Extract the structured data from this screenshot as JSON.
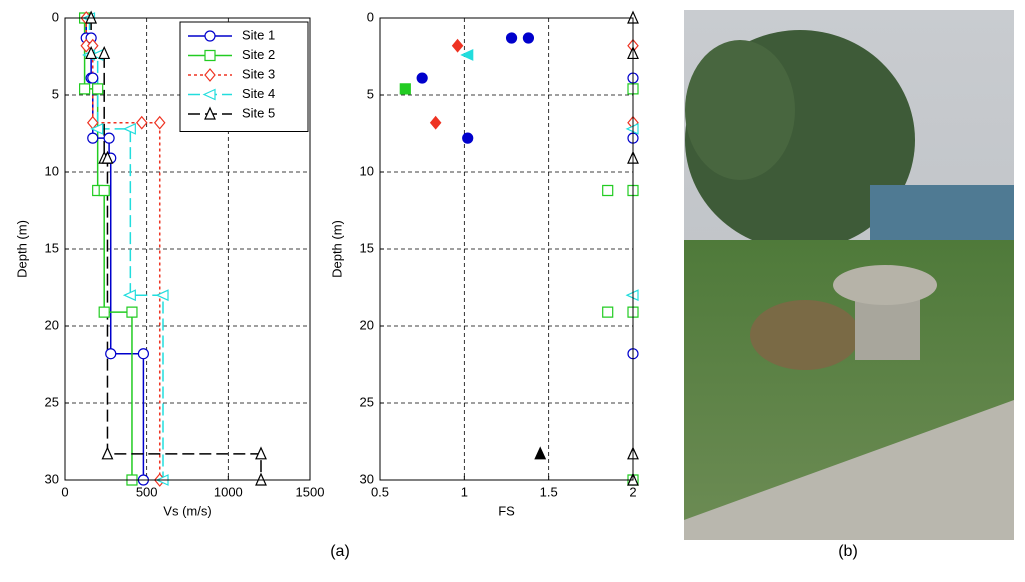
{
  "chart_data": [
    {
      "type": "line",
      "xlabel": "Vs (m/s)",
      "ylabel": "Depth (m)",
      "xlim": [
        0,
        1500
      ],
      "xticks": [
        0,
        500,
        1000,
        1500
      ],
      "ylim": [
        0,
        30
      ],
      "yticks": [
        0,
        5,
        10,
        15,
        20,
        25,
        30
      ],
      "yinvert": true,
      "grid": true,
      "legend": "upper right",
      "series": [
        {
          "name": "Site 1",
          "color": "#0000cc",
          "marker": "circle",
          "dash": "solid",
          "x": [
            130,
            130,
            160,
            160,
            170,
            170,
            270,
            270,
            280,
            280,
            480,
            480
          ],
          "values": [
            0,
            1.3,
            1.3,
            3.9,
            3.9,
            7.8,
            7.8,
            9.1,
            9.1,
            21.8,
            21.8,
            30
          ]
        },
        {
          "name": "Site 2",
          "color": "#22cc22",
          "marker": "square",
          "dash": "solid",
          "x": [
            120,
            120,
            200,
            200,
            240,
            240,
            410,
            410
          ],
          "values": [
            0,
            4.6,
            4.6,
            11.2,
            11.2,
            19.1,
            19.1,
            30
          ]
        },
        {
          "name": "Site 3",
          "color": "#ee3322",
          "marker": "diamond",
          "dash": "dotted",
          "x": [
            130,
            130,
            170,
            170,
            470,
            580,
            580
          ],
          "values": [
            0,
            1.8,
            1.8,
            6.8,
            6.8,
            6.8,
            30
          ]
        },
        {
          "name": "Site 4",
          "color": "#22dddd",
          "marker": "triangle-left",
          "dash": "dashed",
          "x": [
            150,
            150,
            200,
            200,
            400,
            400,
            600,
            600
          ],
          "values": [
            0,
            2.4,
            2.4,
            7.2,
            7.2,
            18,
            18,
            30
          ]
        },
        {
          "name": "Site 5",
          "color": "#000000",
          "marker": "triangle-up",
          "dash": "dashed",
          "x": [
            160,
            160,
            240,
            240,
            260,
            260,
            1200,
            1200
          ],
          "values": [
            0,
            2.3,
            2.3,
            9.1,
            9.1,
            28.3,
            28.3,
            30
          ]
        }
      ]
    },
    {
      "type": "scatter",
      "xlabel": "FS",
      "ylabel": "Depth (m)",
      "xlim": [
        0.5,
        2
      ],
      "xticks": [
        0.5,
        1,
        1.5,
        2
      ],
      "ylim": [
        0,
        30
      ],
      "yticks": [
        0,
        5,
        10,
        15,
        20,
        25,
        30
      ],
      "yinvert": true,
      "grid": true,
      "series": [
        {
          "color": "#0000cc",
          "marker": "circle",
          "x": [
            1.28,
            1.38,
            0.75,
            1.02,
            2,
            2,
            2,
            2
          ],
          "values": [
            1.3,
            1.3,
            3.9,
            7.8,
            3.9,
            7.8,
            21.8,
            30
          ],
          "filled": [
            true,
            true,
            true,
            true,
            false,
            false,
            false,
            false
          ]
        },
        {
          "color": "#22cc22",
          "marker": "square",
          "x": [
            0.65,
            2,
            1.85,
            2,
            1.85,
            2,
            2
          ],
          "values": [
            4.6,
            4.6,
            11.2,
            11.2,
            19.1,
            19.1,
            30
          ],
          "filled": [
            true,
            false,
            false,
            false,
            false,
            false,
            false
          ]
        },
        {
          "color": "#ee3322",
          "marker": "diamond",
          "x": [
            0.96,
            0.83,
            2,
            2
          ],
          "values": [
            1.8,
            6.8,
            1.8,
            6.8
          ],
          "filled": [
            true,
            true,
            false,
            false
          ]
        },
        {
          "color": "#22dddd",
          "marker": "triangle-left",
          "x": [
            1.02,
            2,
            2
          ],
          "values": [
            2.4,
            7.2,
            18
          ],
          "filled": [
            true,
            false,
            false
          ]
        },
        {
          "color": "#000000",
          "marker": "triangle-up",
          "x": [
            1.45,
            2,
            2,
            2,
            2,
            2
          ],
          "values": [
            28.3,
            0,
            2.3,
            9.1,
            28.3,
            30
          ],
          "filled": [
            true,
            false,
            false,
            false,
            false,
            false
          ]
        }
      ]
    }
  ],
  "captions": [
    "(a)",
    "(b)"
  ]
}
